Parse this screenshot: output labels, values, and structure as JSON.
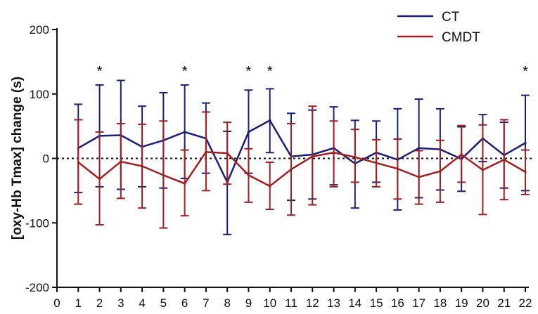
{
  "chart_data": {
    "type": "line",
    "ylabel": "[oxy-Hb Tmax] change (s)",
    "xlabel": "",
    "xlim": [
      0,
      22
    ],
    "ylim": [
      -200,
      200
    ],
    "x_ticks": [
      0,
      1,
      2,
      3,
      4,
      5,
      6,
      7,
      8,
      9,
      10,
      11,
      12,
      13,
      14,
      15,
      16,
      17,
      18,
      19,
      20,
      21,
      22
    ],
    "y_ticks": [
      -200,
      -100,
      0,
      100,
      200
    ],
    "zero_line": "dotted",
    "legend_position": "top-right",
    "x": [
      1,
      2,
      3,
      4,
      5,
      6,
      7,
      8,
      9,
      10,
      11,
      12,
      13,
      14,
      15,
      16,
      17,
      18,
      19,
      20,
      21,
      22
    ],
    "series": [
      {
        "name": "CT",
        "color": "#1a1f7a",
        "values": [
          16,
          35,
          36,
          18,
          28,
          41,
          31,
          -37,
          41,
          59,
          3,
          6,
          16,
          -8,
          9,
          -2,
          16,
          14,
          -1,
          31,
          5,
          24
        ],
        "err_low": [
          -53,
          -44,
          -48,
          -44,
          -46,
          -31,
          -23,
          -118,
          -23,
          9,
          -65,
          -63,
          -41,
          -77,
          -37,
          -80,
          -61,
          -49,
          -51,
          -5,
          -46,
          -50
        ],
        "err_high": [
          84,
          114,
          121,
          81,
          102,
          114,
          86,
          42,
          106,
          108,
          70,
          75,
          80,
          59,
          58,
          77,
          92,
          77,
          49,
          68,
          56,
          98
        ]
      },
      {
        "name": "CMDT",
        "color": "#a1201f",
        "values": [
          -6,
          -32,
          -5,
          -12,
          -26,
          -39,
          10,
          8,
          -26,
          -43,
          -17,
          3,
          9,
          2,
          -7,
          -16,
          -29,
          -20,
          6,
          -18,
          -2,
          -21
        ],
        "err_low": [
          -71,
          -103,
          -62,
          -77,
          -108,
          -89,
          -50,
          -40,
          -68,
          -79,
          -88,
          -72,
          -44,
          -37,
          -44,
          -63,
          -71,
          -68,
          -37,
          -87,
          -64,
          -56
        ],
        "err_high": [
          60,
          41,
          54,
          53,
          58,
          13,
          72,
          56,
          15,
          -6,
          54,
          81,
          58,
          45,
          29,
          30,
          12,
          28,
          51,
          52,
          60,
          13
        ]
      }
    ],
    "annotations": [
      {
        "x": 2,
        "text": "*"
      },
      {
        "x": 6,
        "text": "*"
      },
      {
        "x": 9,
        "text": "*"
      },
      {
        "x": 10,
        "text": "*"
      },
      {
        "x": 22,
        "text": "*"
      }
    ]
  }
}
